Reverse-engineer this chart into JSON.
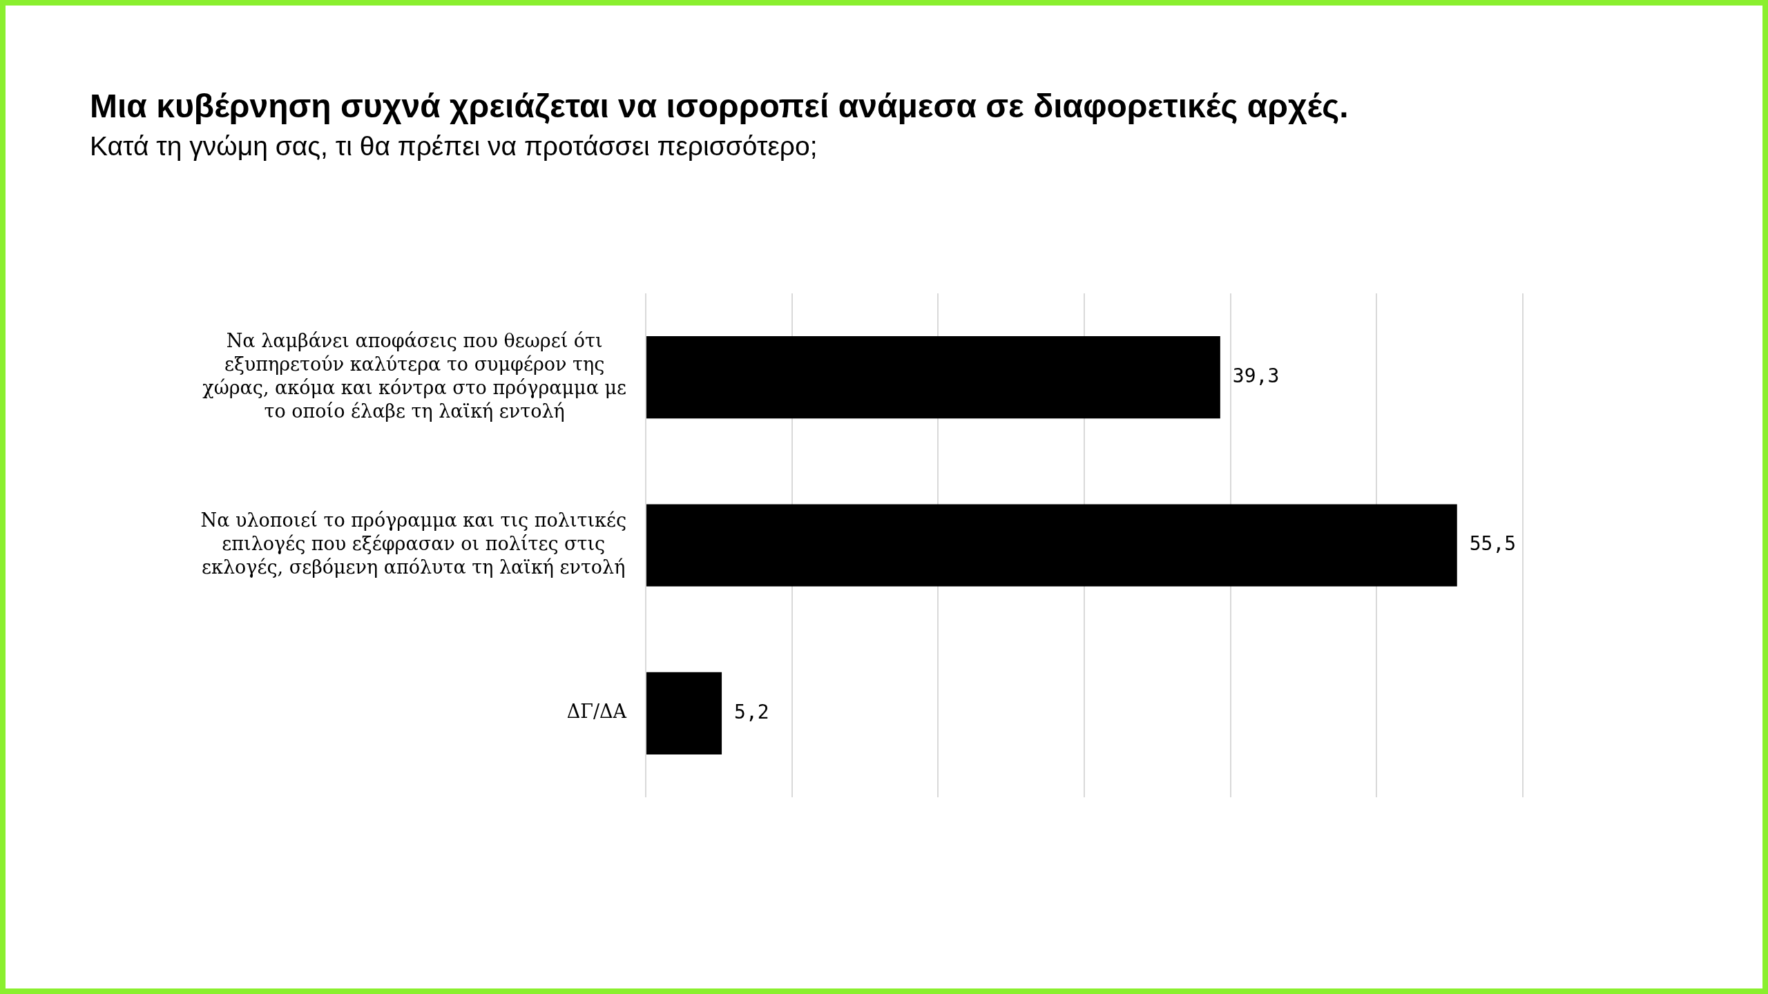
{
  "chart_data": {
    "type": "bar",
    "orientation": "horizontal",
    "title": "Μια κυβέρνηση συχνά χρειάζεται να ισορροπεί ανάμεσα σε διαφορετικές αρχές.",
    "subtitle": "Κατά τη γνώμη σας, τι θα πρέπει να προτάσσει περισσότερο;",
    "categories": [
      "Να λαμβάνει αποφάσεις που θεωρεί ότι εξυπηρετούν καλύτερα το συμφέρον της χώρας, ακόμα και κόντρα στο πρόγραμμα με το οποίο έλαβε τη λαϊκή εντολή",
      "Να υλοποιεί το πρόγραμμα και τις πολιτικές επιλογές που εξέφρασαν οι πολίτες στις εκλογές, σεβόμενη απόλυτα τη λαϊκή εντολή",
      "ΔΓ/ΔΑ"
    ],
    "values": [
      39.3,
      55.5,
      5.2
    ],
    "value_labels": [
      "39,3",
      "55,5",
      "5,2"
    ],
    "color": "#000000",
    "xlim": [
      0,
      60
    ],
    "xticks": [
      {
        "value": 0,
        "label": null
      },
      {
        "value": 10,
        "label": null
      },
      {
        "value": 20,
        "label": null
      },
      {
        "value": 30,
        "label": null
      },
      {
        "value": 40,
        "label": null
      },
      {
        "value": 50,
        "label": null
      },
      {
        "value": 60,
        "label": null
      }
    ],
    "grid": "x",
    "tick_labels": "y"
  }
}
